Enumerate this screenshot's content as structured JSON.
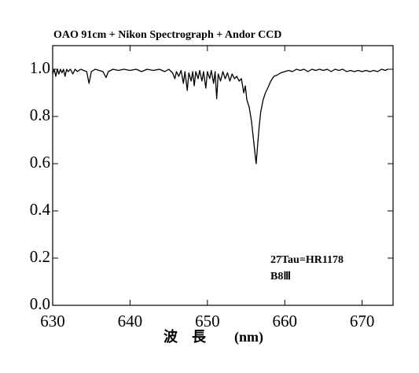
{
  "chart_data": {
    "type": "line",
    "title": "OAO 91cm + Nikon Spectrograph + Andor CCD",
    "x_label": "波　長　　(nm)",
    "annotations": [
      "27Tau=HR1178",
      "B8Ⅲ"
    ],
    "color": "#000000",
    "xlim": [
      630,
      674
    ],
    "ylim": [
      0,
      1.1
    ],
    "xticks": [
      630,
      640,
      650,
      660,
      670
    ],
    "yticks": [
      {
        "value": 0,
        "label": "0.0"
      },
      0.2,
      0.4,
      0.6,
      0.8,
      {
        "value": 1,
        "label": "1.0"
      }
    ],
    "x": [
      630.0,
      630.2,
      630.4,
      630.6,
      630.8,
      631.0,
      631.2,
      631.4,
      631.6,
      631.8,
      632.0,
      632.3,
      632.6,
      632.9,
      633.2,
      633.6,
      634.0,
      634.4,
      634.7,
      635.0,
      635.5,
      636.0,
      636.5,
      636.9,
      637.2,
      637.8,
      638.5,
      639.2,
      640.0,
      640.8,
      641.5,
      642.2,
      643.0,
      643.8,
      644.5,
      645.0,
      645.5,
      645.8,
      646.0,
      646.3,
      646.6,
      646.9,
      647.1,
      647.4,
      647.6,
      647.9,
      648.1,
      648.3,
      648.5,
      648.8,
      649.0,
      649.3,
      649.5,
      649.8,
      650.0,
      650.3,
      650.5,
      650.8,
      651.0,
      651.2,
      651.4,
      651.7,
      652.0,
      652.3,
      652.6,
      652.9,
      653.2,
      653.5,
      653.8,
      654.1,
      654.4,
      654.7,
      654.9,
      655.1,
      655.4,
      655.7,
      655.9,
      656.1,
      656.3,
      656.5,
      656.7,
      656.9,
      657.2,
      657.5,
      657.8,
      658.2,
      658.6,
      659.0,
      659.5,
      660.0,
      660.5,
      661.0,
      661.5,
      662.0,
      662.5,
      663.0,
      663.5,
      664.0,
      664.5,
      665.0,
      665.5,
      666.0,
      666.5,
      667.0,
      667.5,
      668.0,
      668.5,
      669.0,
      669.5,
      670.0,
      670.5,
      671.0,
      671.5,
      672.0,
      672.5,
      673.0,
      673.3
    ],
    "values": [
      0.98,
      1.0,
      0.97,
      1.0,
      0.98,
      1.0,
      0.985,
      1.0,
      0.97,
      1.0,
      0.99,
      1.0,
      0.98,
      1.0,
      0.99,
      1.0,
      0.995,
      0.99,
      0.94,
      0.99,
      1.0,
      0.995,
      0.99,
      0.965,
      0.99,
      1.0,
      0.995,
      1.0,
      0.995,
      1.0,
      0.99,
      1.0,
      0.995,
      1.0,
      0.99,
      1.0,
      0.985,
      0.96,
      0.99,
      0.97,
      0.995,
      0.94,
      0.99,
      0.91,
      0.985,
      0.95,
      0.99,
      0.93,
      0.99,
      0.96,
      0.995,
      0.95,
      0.99,
      0.92,
      0.99,
      0.96,
      0.995,
      0.94,
      0.99,
      0.875,
      0.98,
      0.95,
      0.99,
      0.96,
      0.985,
      0.95,
      0.98,
      0.96,
      0.97,
      0.95,
      0.96,
      0.9,
      0.93,
      0.87,
      0.84,
      0.78,
      0.72,
      0.66,
      0.6,
      0.68,
      0.76,
      0.82,
      0.87,
      0.9,
      0.92,
      0.95,
      0.97,
      0.975,
      0.985,
      0.99,
      0.995,
      0.99,
      1.0,
      0.995,
      1.0,
      0.99,
      1.0,
      0.995,
      1.0,
      0.995,
      1.0,
      0.99,
      1.0,
      0.995,
      1.0,
      0.99,
      0.995,
      0.99,
      0.995,
      0.99,
      0.995,
      0.99,
      0.995,
      0.99,
      1.0,
      0.995,
      1.0
    ]
  }
}
